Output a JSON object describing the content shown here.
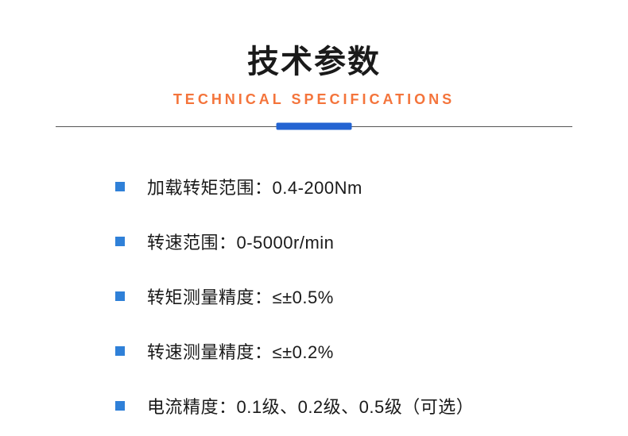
{
  "header": {
    "main_title": "技术参数",
    "sub_title": "TECHNICAL SPECIFICATIONS",
    "sub_title_color": "#f4743b",
    "divider_line_color": "#555555",
    "divider_accent_color": "#2464d2"
  },
  "bullet_color": "#2f80d8",
  "specs": [
    {
      "text": "加载转矩范围：0.4-200Nm"
    },
    {
      "text": "转速范围：0-5000r/min"
    },
    {
      "text": "转矩测量精度：≤±0.5%"
    },
    {
      "text": "转速测量精度：≤±0.2%"
    },
    {
      "text": "电流精度：0.1级、0.2级、0.5级（可选）"
    }
  ]
}
